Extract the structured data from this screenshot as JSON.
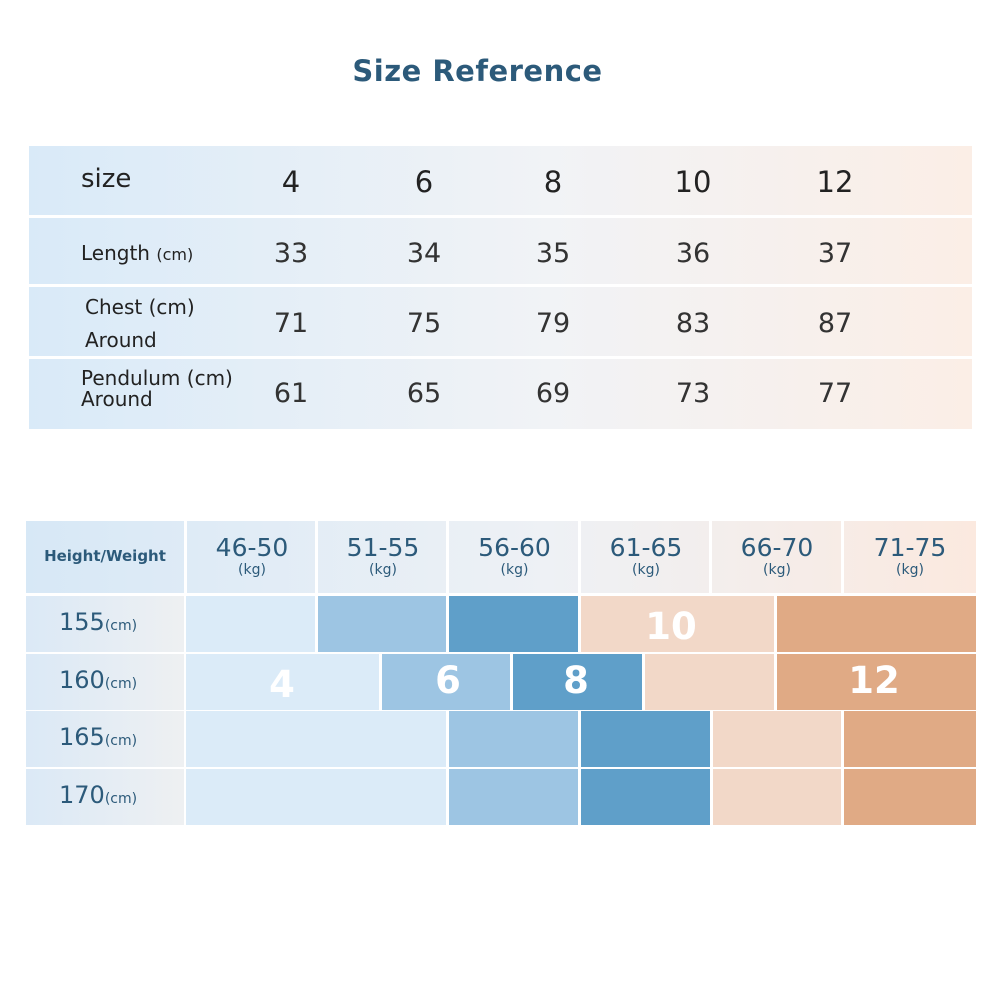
{
  "title": "Size Reference",
  "size_table": {
    "header_label": "size",
    "sizes": [
      "4",
      "6",
      "8",
      "10",
      "12"
    ],
    "rows": [
      {
        "label": "Length",
        "unit": "(cm)",
        "values": [
          "33",
          "34",
          "35",
          "36",
          "37"
        ]
      },
      {
        "label": "Chest (cm)",
        "label2": "Around",
        "values": [
          "71",
          "75",
          "79",
          "83",
          "87"
        ]
      },
      {
        "label": "Pendulum (cm)",
        "label2": "Around",
        "values": [
          "61",
          "65",
          "69",
          "73",
          "77"
        ]
      }
    ]
  },
  "fit_table": {
    "corner_label": "Height/Weight",
    "weight_unit": "(kg)",
    "weights": [
      "46-50",
      "51-55",
      "56-60",
      "61-65",
      "66-70",
      "71-75"
    ],
    "height_unit": "(cm)",
    "heights": [
      "155",
      "160",
      "165",
      "170"
    ],
    "size_labels": {
      "s4": "4",
      "s6": "6",
      "s8": "8",
      "s10": "10",
      "s12": "12"
    },
    "colors": {
      "size_4": "#dbebf8",
      "size_6": "#9dc5e3",
      "size_8": "#5f9fc9",
      "size_10": "#f2d8c8",
      "size_12": "#e0aa85"
    }
  }
}
